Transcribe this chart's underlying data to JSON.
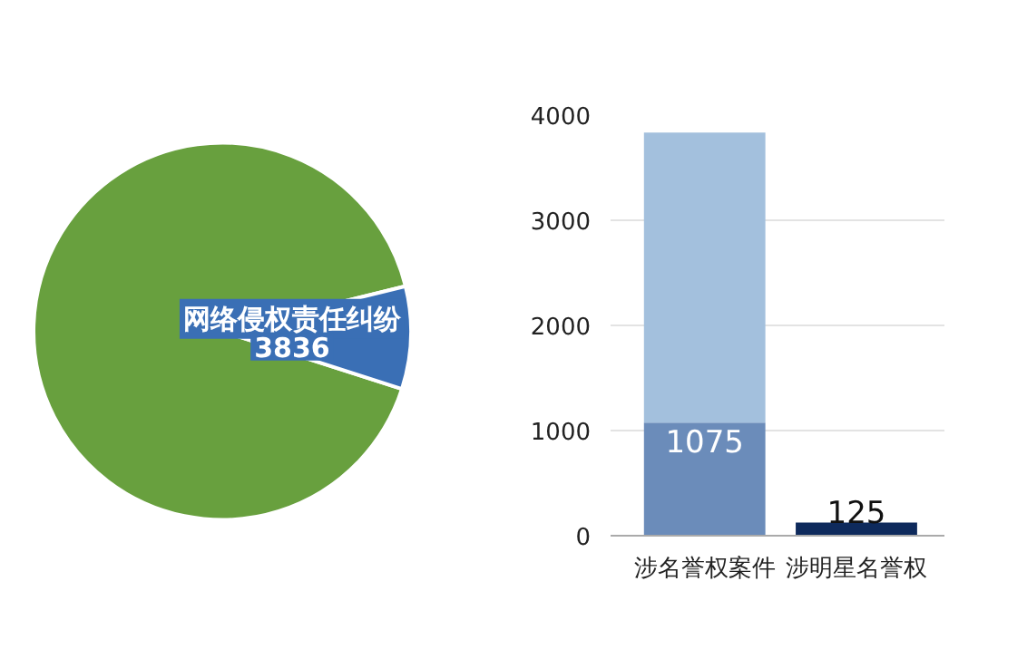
{
  "chart_data": [
    {
      "type": "pie",
      "categories": [
        null,
        "网络侵权责任纠纷"
      ],
      "values": [
        39800,
        3836
      ],
      "colors": [
        "#68a03e",
        "#3a6fb5"
      ],
      "value_labels": [
        null,
        "3836"
      ]
    },
    {
      "type": "bar",
      "stacked": true,
      "categories": [
        "涉名誉权案件",
        "涉明星名誉权"
      ],
      "ylim": [
        0,
        4000
      ],
      "yticks": [
        0,
        1000,
        2000,
        3000,
        4000
      ],
      "grid": "y",
      "series": [
        {
          "colors": [
            "#6b8cba",
            "#0e2a5c"
          ],
          "values": [
            1075,
            125
          ],
          "value_labels": [
            "1075",
            "125"
          ]
        },
        {
          "color": "#a3c0dd",
          "values": [
            2760,
            null
          ]
        }
      ]
    }
  ]
}
